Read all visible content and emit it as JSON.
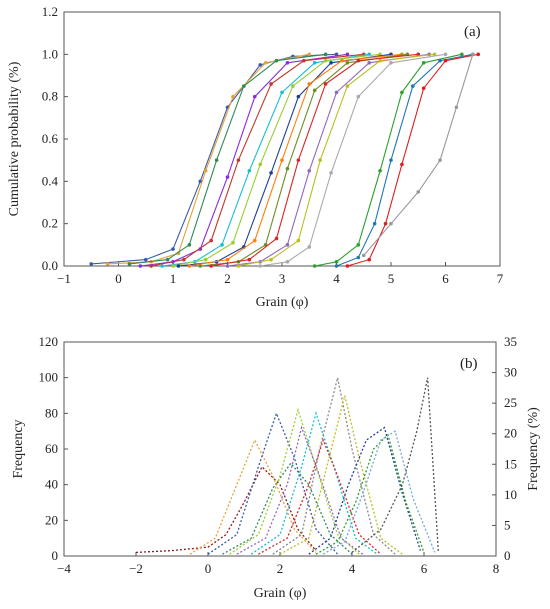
{
  "chart_data": [
    {
      "type": "line",
      "panel_label": "(a)",
      "xlabel": "Grain (φ)",
      "ylabel": "Cumulative probability (%)",
      "xlim": [
        -1,
        7
      ],
      "ylim": [
        0,
        1.2
      ],
      "xticks": [
        "−1",
        "0",
        "1",
        "2",
        "3",
        "4",
        "5",
        "6",
        "7"
      ],
      "yticks": [
        "0.0",
        "0.2",
        "0.4",
        "0.6",
        "0.8",
        "1.0",
        "1.2"
      ],
      "grid": false,
      "series": [
        {
          "color": "#3b5ba9",
          "x": [
            -0.5,
            0.5,
            1.0,
            1.5,
            2.0,
            2.6,
            3.2,
            4.0
          ],
          "y": [
            0.01,
            0.03,
            0.08,
            0.4,
            0.75,
            0.95,
            0.99,
            1.0
          ]
        },
        {
          "color": "#e2a33a",
          "x": [
            -0.2,
            0.6,
            1.1,
            1.6,
            2.1,
            2.7,
            3.5
          ],
          "y": [
            0.01,
            0.02,
            0.06,
            0.45,
            0.8,
            0.96,
            1.0
          ]
        },
        {
          "color": "#2e8b57",
          "x": [
            0.2,
            0.9,
            1.3,
            1.8,
            2.3,
            2.9,
            3.8
          ],
          "y": [
            0.01,
            0.03,
            0.1,
            0.5,
            0.85,
            0.97,
            1.0
          ]
        },
        {
          "color": "#8a2be2",
          "x": [
            0.4,
            1.0,
            1.5,
            2.0,
            2.5,
            3.1,
            4.2
          ],
          "y": [
            0.0,
            0.02,
            0.08,
            0.42,
            0.8,
            0.96,
            1.0
          ]
        },
        {
          "color": "#c0392b",
          "x": [
            0.6,
            1.2,
            1.7,
            2.2,
            2.8,
            3.4,
            4.5
          ],
          "y": [
            0.0,
            0.03,
            0.12,
            0.5,
            0.86,
            0.97,
            1.0
          ]
        },
        {
          "color": "#17becf",
          "x": [
            0.8,
            1.4,
            1.9,
            2.4,
            3.0,
            3.6,
            4.6
          ],
          "y": [
            0.0,
            0.02,
            0.1,
            0.45,
            0.82,
            0.96,
            1.0
          ]
        },
        {
          "color": "#9acd32",
          "x": [
            1.0,
            1.6,
            2.1,
            2.6,
            3.2,
            3.8,
            4.8
          ],
          "y": [
            0.0,
            0.03,
            0.11,
            0.48,
            0.85,
            0.97,
            1.0
          ]
        },
        {
          "color": "#1f3f8f",
          "x": [
            1.1,
            1.8,
            2.3,
            2.8,
            3.3,
            3.9,
            5.0
          ],
          "y": [
            0.0,
            0.02,
            0.09,
            0.44,
            0.8,
            0.96,
            1.0
          ]
        },
        {
          "color": "#ff7f0e",
          "x": [
            1.3,
            2.0,
            2.5,
            3.0,
            3.5,
            4.1,
            5.2
          ],
          "y": [
            0.0,
            0.03,
            0.12,
            0.5,
            0.86,
            0.97,
            1.0
          ]
        },
        {
          "color": "#6b8e23",
          "x": [
            1.5,
            2.2,
            2.7,
            3.1,
            3.6,
            4.2,
            5.3
          ],
          "y": [
            0.0,
            0.02,
            0.1,
            0.46,
            0.83,
            0.96,
            1.0
          ]
        },
        {
          "color": "#d62728",
          "x": [
            1.7,
            2.4,
            2.9,
            3.3,
            3.8,
            4.4,
            5.5
          ],
          "y": [
            0.0,
            0.03,
            0.13,
            0.5,
            0.86,
            0.97,
            1.0
          ]
        },
        {
          "color": "#9467bd",
          "x": [
            2.0,
            2.6,
            3.1,
            3.5,
            4.0,
            4.6,
            5.7
          ],
          "y": [
            0.0,
            0.02,
            0.1,
            0.45,
            0.82,
            0.96,
            1.0
          ]
        },
        {
          "color": "#bcbd22",
          "x": [
            2.2,
            2.8,
            3.3,
            3.7,
            4.2,
            4.8,
            5.8
          ],
          "y": [
            0.0,
            0.03,
            0.12,
            0.5,
            0.85,
            0.97,
            1.0
          ]
        },
        {
          "color": "#aaaaaa",
          "x": [
            2.6,
            3.1,
            3.5,
            3.9,
            4.4,
            5.0,
            6.0
          ],
          "y": [
            0.0,
            0.02,
            0.09,
            0.44,
            0.8,
            0.96,
            1.0
          ]
        },
        {
          "color": "#2ca02c",
          "x": [
            3.6,
            4.0,
            4.4,
            4.8,
            5.2,
            5.6,
            6.3
          ],
          "y": [
            0.0,
            0.02,
            0.1,
            0.45,
            0.82,
            0.96,
            1.0
          ]
        },
        {
          "color": "#1f77b4",
          "x": [
            4.0,
            4.4,
            4.7,
            5.0,
            5.4,
            5.9,
            6.5
          ],
          "y": [
            0.0,
            0.04,
            0.2,
            0.5,
            0.85,
            0.97,
            1.0
          ]
        },
        {
          "color": "#e31a1c",
          "x": [
            4.2,
            4.6,
            4.9,
            5.2,
            5.6,
            6.0,
            6.6
          ],
          "y": [
            0.0,
            0.03,
            0.2,
            0.48,
            0.84,
            0.97,
            1.0
          ]
        },
        {
          "color": "#999999",
          "x": [
            4.5,
            5.0,
            5.5,
            5.9,
            6.2,
            6.5
          ],
          "y": [
            0.05,
            0.2,
            0.35,
            0.5,
            0.75,
            1.0
          ]
        }
      ]
    },
    {
      "type": "line",
      "panel_label": "(b)",
      "xlabel": "Grain (φ)",
      "ylabel": "Frequency",
      "ylabel_right": "Frequency (%)",
      "xlim": [
        -4,
        8
      ],
      "ylim": [
        0,
        120
      ],
      "ylim_right": [
        0,
        35
      ],
      "xticks": [
        "−4",
        "−2",
        "0",
        "2",
        "4",
        "6",
        "8"
      ],
      "yticks": [
        "0",
        "20",
        "40",
        "60",
        "80",
        "100",
        "120"
      ],
      "yticks_right": [
        "0",
        "5",
        "10",
        "15",
        "20",
        "25",
        "30",
        "35"
      ],
      "grid": false,
      "series": [
        {
          "color": "#8b1a1a",
          "x": [
            -2.0,
            -1.0,
            0.0,
            0.5,
            1.0,
            1.5,
            2.0,
            2.5,
            3.0
          ],
          "y": [
            2,
            3,
            5,
            12,
            30,
            50,
            40,
            15,
            3
          ]
        },
        {
          "color": "#e2a33a",
          "x": [
            -0.5,
            0.2,
            0.8,
            1.3,
            1.8,
            2.4,
            3.0
          ],
          "y": [
            1,
            10,
            40,
            65,
            45,
            15,
            2
          ]
        },
        {
          "color": "#3b5ba9",
          "x": [
            0.0,
            0.8,
            1.4,
            1.9,
            2.4,
            3.0,
            3.6
          ],
          "y": [
            1,
            12,
            50,
            80,
            55,
            15,
            1
          ]
        },
        {
          "color": "#2e8b57",
          "x": [
            0.4,
            1.2,
            1.8,
            2.3,
            2.8,
            3.4,
            4.0
          ],
          "y": [
            1,
            10,
            38,
            52,
            40,
            12,
            1
          ]
        },
        {
          "color": "#9acd32",
          "x": [
            0.6,
            1.4,
            2.0,
            2.5,
            3.0,
            3.6,
            4.2
          ],
          "y": [
            1,
            12,
            45,
            82,
            50,
            12,
            1
          ]
        },
        {
          "color": "#9467bd",
          "x": [
            0.8,
            1.6,
            2.2,
            2.6,
            3.1,
            3.7,
            4.3
          ],
          "y": [
            1,
            10,
            40,
            72,
            45,
            10,
            1
          ]
        },
        {
          "color": "#17becf",
          "x": [
            1.2,
            2.0,
            2.6,
            3.0,
            3.5,
            4.1,
            4.7
          ],
          "y": [
            1,
            12,
            50,
            80,
            50,
            10,
            1
          ]
        },
        {
          "color": "#d62728",
          "x": [
            1.4,
            2.2,
            2.8,
            3.2,
            3.6,
            4.2,
            4.8
          ],
          "y": [
            1,
            10,
            40,
            65,
            45,
            12,
            1
          ]
        },
        {
          "color": "#888888",
          "x": [
            1.8,
            2.6,
            3.1,
            3.6,
            4.0,
            4.6,
            5.2
          ],
          "y": [
            1,
            12,
            60,
            100,
            60,
            12,
            1
          ]
        },
        {
          "color": "#bcbd22",
          "x": [
            2.0,
            2.8,
            3.3,
            3.8,
            4.2,
            4.8,
            5.4
          ],
          "y": [
            1,
            10,
            50,
            90,
            55,
            10,
            1
          ]
        },
        {
          "color": "#1f3f8f",
          "x": [
            2.8,
            3.4,
            3.9,
            4.4,
            4.9,
            5.4,
            5.9
          ],
          "y": [
            1,
            10,
            40,
            65,
            72,
            35,
            3
          ]
        },
        {
          "color": "#2ca02c",
          "x": [
            3.0,
            3.6,
            4.1,
            4.6,
            5.0,
            5.5,
            6.0
          ],
          "y": [
            1,
            8,
            30,
            60,
            68,
            30,
            2
          ]
        },
        {
          "color": "#6fa8dc",
          "x": [
            3.2,
            3.8,
            4.3,
            4.8,
            5.2,
            5.7,
            6.3
          ],
          "y": [
            1,
            8,
            35,
            65,
            70,
            32,
            2
          ]
        },
        {
          "color": "#555555",
          "x": [
            4.0,
            4.8,
            5.4,
            5.8,
            6.1,
            6.4
          ],
          "y": [
            2,
            15,
            40,
            70,
            100,
            2
          ]
        }
      ]
    }
  ]
}
